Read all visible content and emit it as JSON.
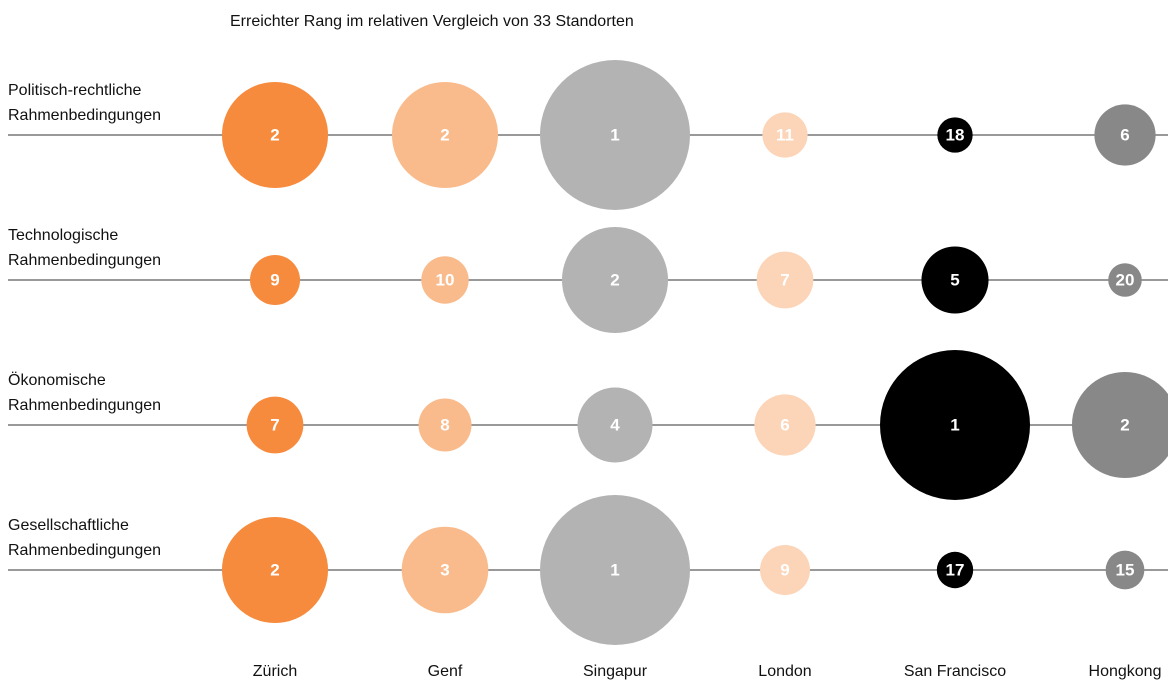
{
  "chart_data": {
    "type": "bubble",
    "title": "Erreichter Rang im relativen Vergleich von 33 Standorten",
    "categories": [
      [
        "Politisch-rechtliche",
        "Rahmenbedingungen"
      ],
      [
        "Technologische",
        "Rahmenbedingungen"
      ],
      [
        "Ökonomische",
        "Rahmenbedingungen"
      ],
      [
        "Gesellschaftliche",
        "Rahmenbedingungen"
      ]
    ],
    "series": [
      {
        "name": "Zürich",
        "color": "#f68b3d",
        "values": [
          2,
          9,
          7,
          2
        ]
      },
      {
        "name": "Genf",
        "color": "#f9bb8c",
        "values": [
          2,
          10,
          8,
          3
        ]
      },
      {
        "name": "Singapur",
        "color": "#b3b3b3",
        "values": [
          1,
          2,
          4,
          1
        ]
      },
      {
        "name": "London",
        "color": "#fcd4b7",
        "values": [
          11,
          7,
          6,
          9
        ]
      },
      {
        "name": "San Francisco",
        "color": "#000000",
        "values": [
          18,
          5,
          1,
          17
        ]
      },
      {
        "name": "Hongkong",
        "color": "#888888",
        "values": [
          6,
          20,
          2,
          15
        ]
      }
    ]
  }
}
